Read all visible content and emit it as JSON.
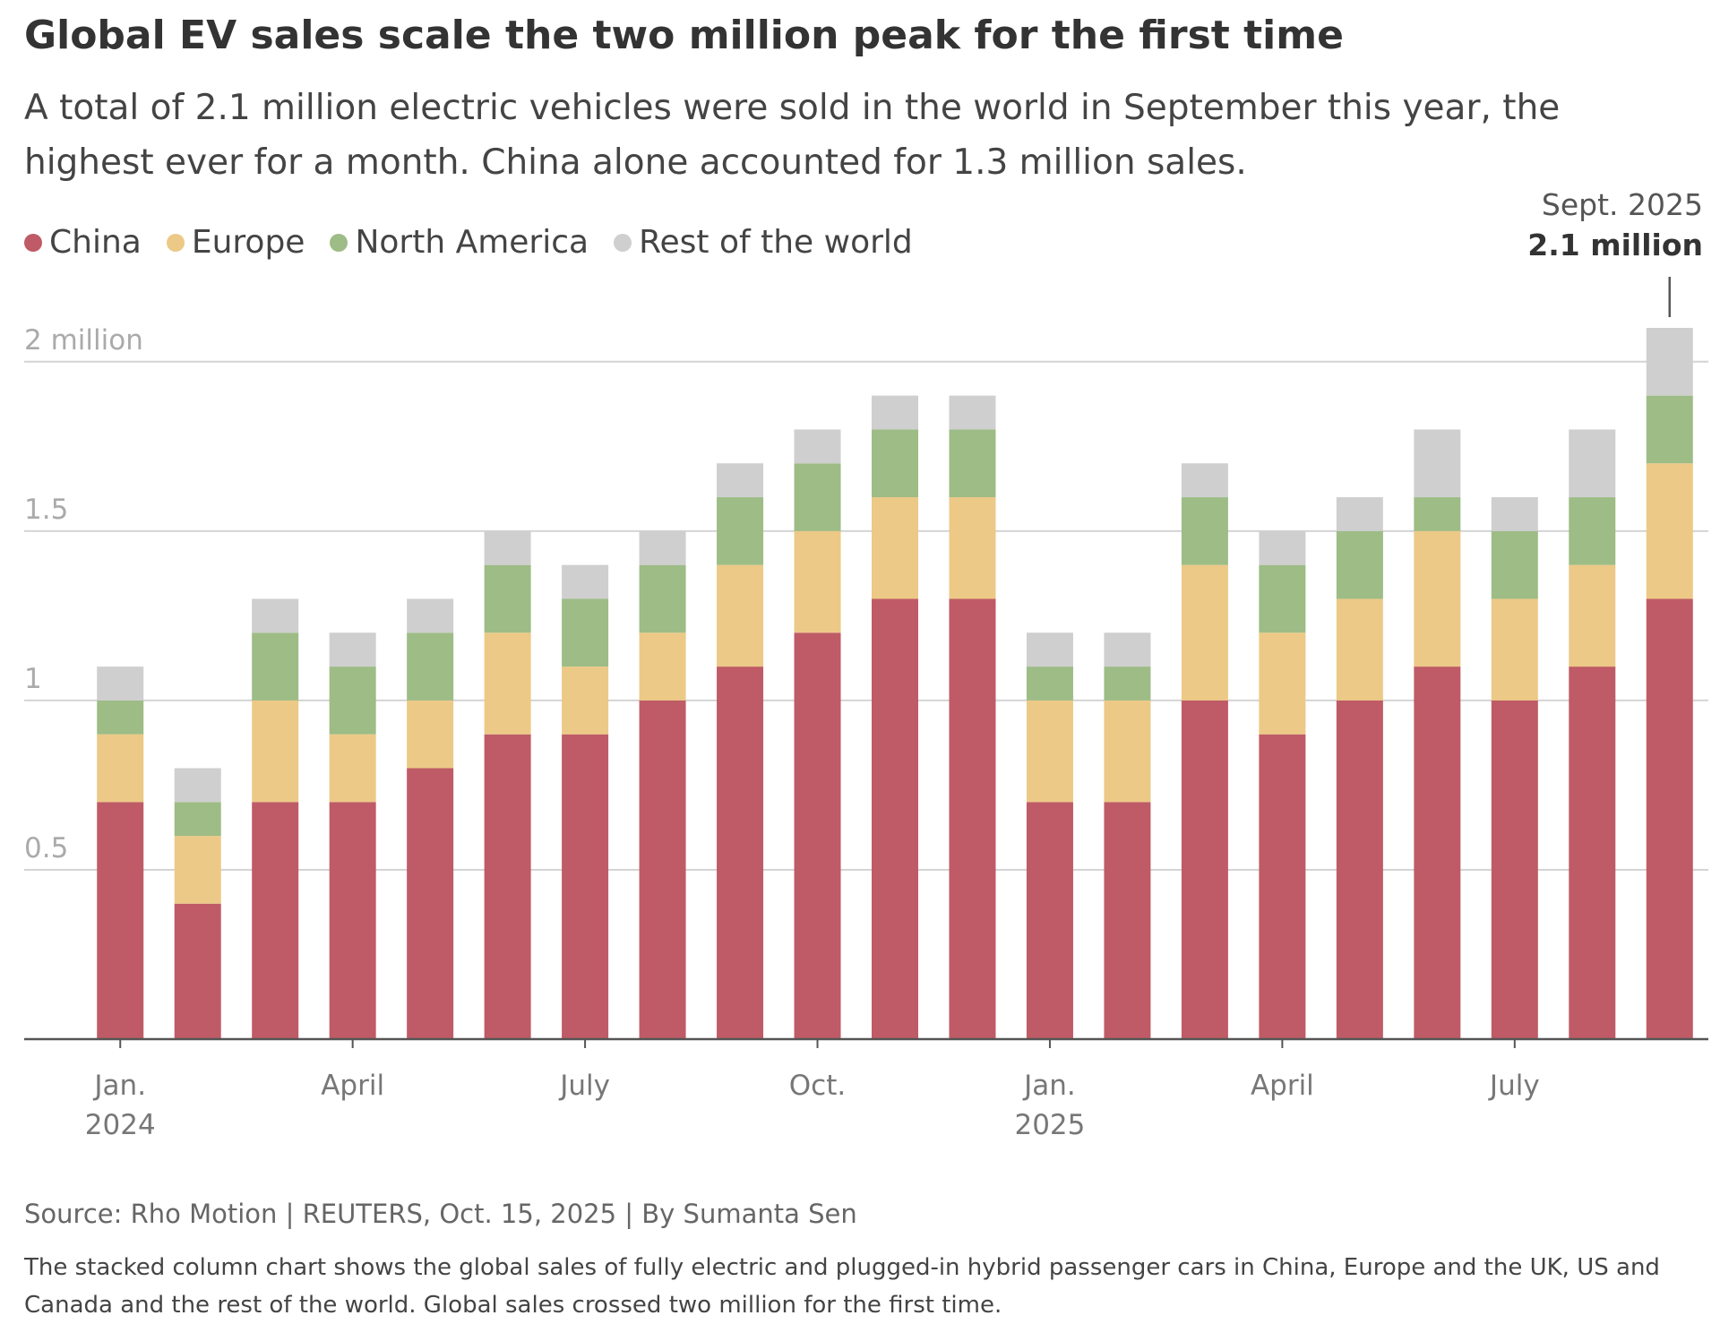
{
  "chart_data": {
    "type": "stacked_bar",
    "title": "Global EV sales scale the two million peak for the first time",
    "subtitle": "A total of 2.1 million electric vehicles were sold in the world in September this year, the highest ever for a month. China alone accounted for 1.3 million sales.",
    "categories": [
      "Jan.\n2024",
      null,
      null,
      "April",
      null,
      null,
      "July",
      null,
      null,
      "Oct.",
      null,
      null,
      "Jan.\n2025",
      null,
      null,
      "April",
      null,
      null,
      "July",
      null,
      null
    ],
    "series": [
      {
        "name": "China",
        "color": "#bf5b66",
        "values": [
          0.7,
          0.4,
          0.7,
          0.7,
          0.8,
          0.9,
          0.9,
          1.0,
          1.1,
          1.2,
          1.3,
          1.3,
          0.7,
          0.7,
          1.0,
          0.9,
          1.0,
          1.1,
          1.0,
          1.1,
          1.3
        ]
      },
      {
        "name": "Europe",
        "color": "#ecc986",
        "values": [
          0.2,
          0.2,
          0.3,
          0.2,
          0.2,
          0.3,
          0.2,
          0.2,
          0.3,
          0.3,
          0.3,
          0.3,
          0.3,
          0.3,
          0.4,
          0.3,
          0.3,
          0.4,
          0.3,
          0.3,
          0.4
        ]
      },
      {
        "name": "North America",
        "color": "#9dbc86",
        "values": [
          0.1,
          0.1,
          0.2,
          0.2,
          0.2,
          0.2,
          0.2,
          0.2,
          0.2,
          0.2,
          0.2,
          0.2,
          0.1,
          0.1,
          0.2,
          0.2,
          0.2,
          0.1,
          0.2,
          0.2,
          0.2
        ]
      },
      {
        "name": "Rest of the world",
        "color": "#cfcfcf",
        "values": [
          0.1,
          0.1,
          0.1,
          0.1,
          0.1,
          0.1,
          0.1,
          0.1,
          0.1,
          0.1,
          0.1,
          0.1,
          0.1,
          0.1,
          0.1,
          0.1,
          0.1,
          0.2,
          0.1,
          0.2,
          0.2
        ]
      }
    ],
    "ylim": [
      0,
      2.1
    ],
    "yticks": [
      0.5,
      1,
      1.5,
      {
        "value": 2,
        "label": "2 million"
      }
    ],
    "grid": true,
    "annotation": {
      "label": "Sept. 2025",
      "value_label": "2.1 million",
      "value": 2.1,
      "index": 20
    },
    "source": "Source: Rho Motion | REUTERS, Oct. 15, 2025 | By Sumanta Sen",
    "note": "The stacked column chart shows the global sales of fully electric and plugged-in hybrid passenger cars in China, Europe and the UK, US and Canada and the rest of the world. Global sales crossed two million for the first time."
  }
}
